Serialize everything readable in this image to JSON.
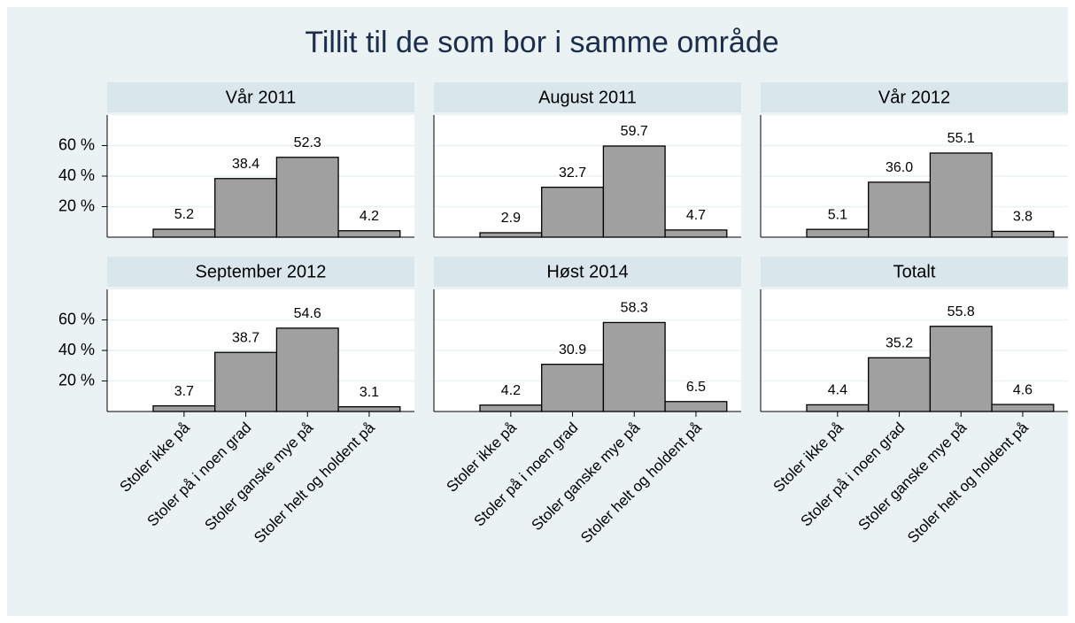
{
  "chart_data": {
    "type": "bar",
    "title": "Tillit til de som bor i samme område",
    "categories": [
      "Stoler ikke på",
      "Stoler på i noen grad",
      "Stoler ganske mye på",
      "Stoler helt og holdent på"
    ],
    "ylim": [
      0,
      80
    ],
    "yticks": [
      {
        "value": 20,
        "label": "20 %"
      },
      {
        "value": 40,
        "label": "40 %"
      },
      {
        "value": 60,
        "label": "60 %"
      }
    ],
    "grid": true,
    "color": "#a0a0a0",
    "panels": [
      {
        "title": "Vår 2011",
        "values": [
          5.2,
          38.4,
          52.3,
          4.2
        ]
      },
      {
        "title": "August 2011",
        "values": [
          2.9,
          32.7,
          59.7,
          4.7
        ]
      },
      {
        "title": "Vår 2012",
        "values": [
          5.1,
          36.0,
          55.1,
          3.8
        ],
        "value_labels": [
          "5.1",
          "36.0",
          "55.1",
          "3.8"
        ]
      },
      {
        "title": "September 2012",
        "values": [
          3.7,
          38.7,
          54.6,
          3.1
        ]
      },
      {
        "title": "Høst 2014",
        "values": [
          4.2,
          30.9,
          58.3,
          6.5
        ]
      },
      {
        "title": "Totalt",
        "values": [
          4.4,
          35.2,
          55.8,
          4.6
        ]
      }
    ]
  }
}
